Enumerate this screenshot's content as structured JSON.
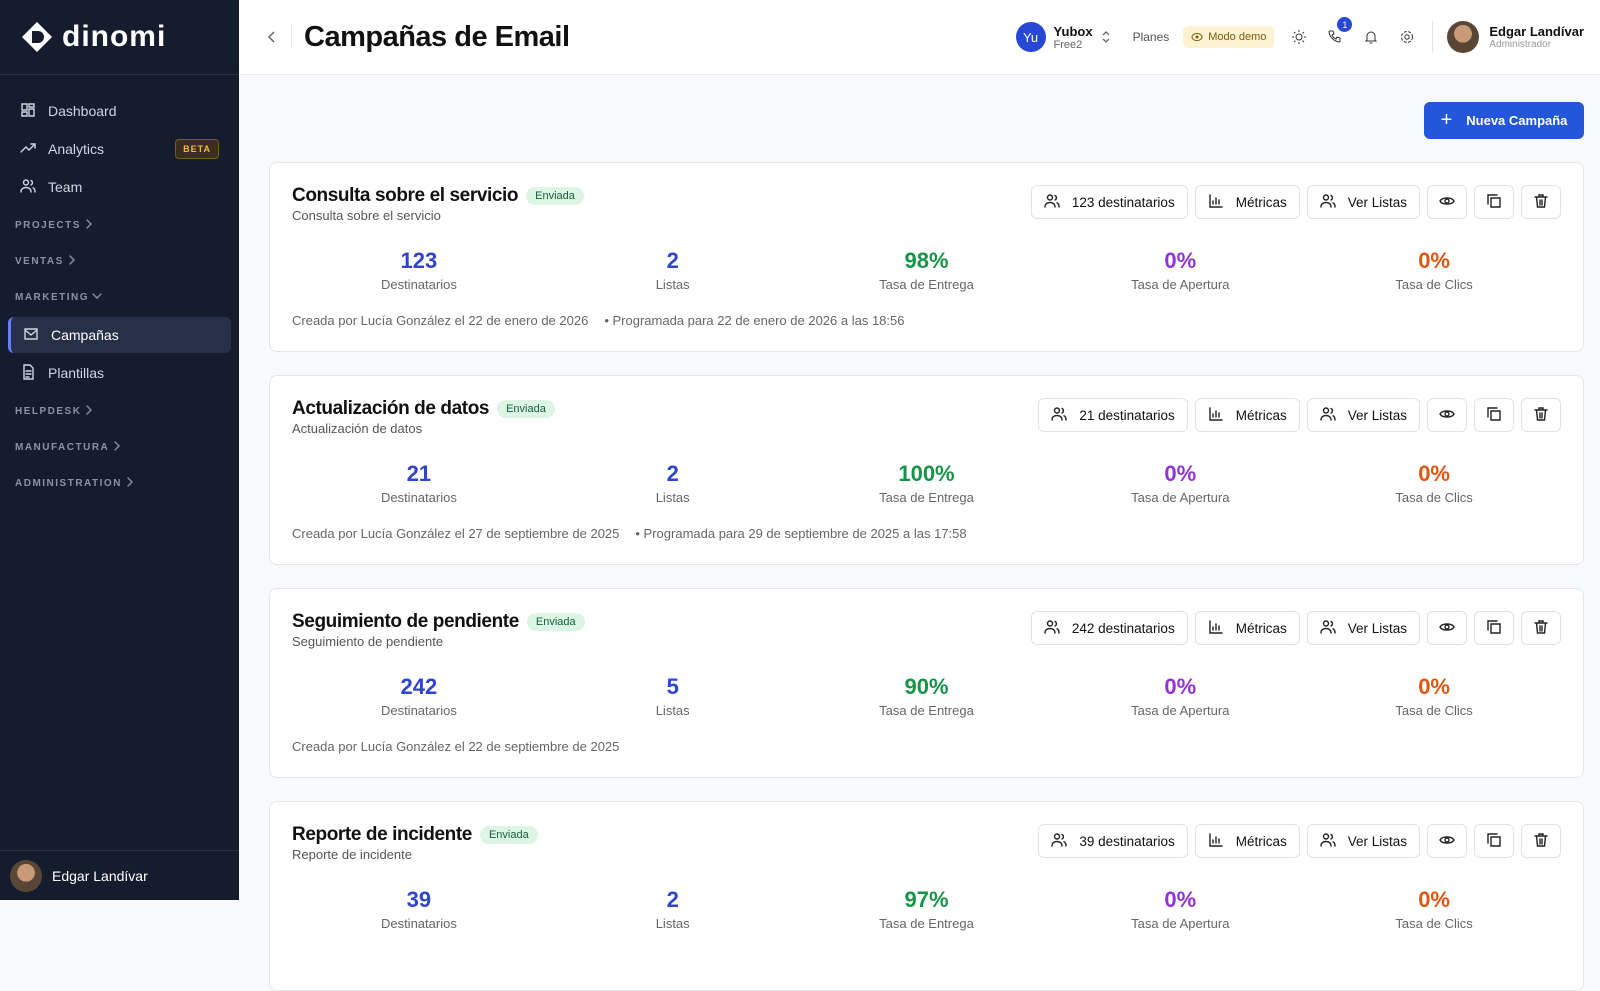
{
  "sidebar": {
    "logo": "dinomi",
    "nav": [
      {
        "label": "Dashboard"
      },
      {
        "label": "Analytics",
        "badge": "BETA"
      },
      {
        "label": "Team"
      }
    ],
    "sections": [
      {
        "label": "PROJECTS",
        "items": []
      },
      {
        "label": "VENTAS",
        "items": []
      },
      {
        "label": "MARKETING",
        "items": [
          "Campañas",
          "Plantillas"
        ]
      },
      {
        "label": "HELPDESK",
        "items": []
      },
      {
        "label": "MANUFACTURA",
        "items": []
      },
      {
        "label": "ADMINISTRATION",
        "items": []
      }
    ],
    "user": "Edgar Landívar"
  },
  "header": {
    "title": "Campañas de Email",
    "org": {
      "initials": "Yu",
      "name": "Yubox",
      "plan": "Free2"
    },
    "plans": "Planes",
    "demo": "Modo demo",
    "notifications": "1",
    "user": {
      "name": "Edgar Landívar",
      "role": "Administrador"
    }
  },
  "new_button": "Nueva Campaña",
  "buttons": {
    "metrics": "Métricas",
    "lists": "Ver Listas"
  },
  "stat_labels": [
    "Destinatarios",
    "Listas",
    "Tasa de Entrega",
    "Tasa de Apertura",
    "Tasa de Clics"
  ],
  "campaigns": [
    {
      "title": "Consulta sobre el servicio",
      "status": "Enviada",
      "subtitle": "Consulta sobre el servicio",
      "recipients_button": "123 destinatarios",
      "stats": [
        "123",
        "2",
        "98%",
        "0%",
        "0%"
      ],
      "created": "Creada por Lucía González el 22 de enero de 2026",
      "scheduled": "• Programada para 22 de enero de 2026 a las 18:56"
    },
    {
      "title": "Actualización de datos",
      "status": "Enviada",
      "subtitle": "Actualización de datos",
      "recipients_button": "21 destinatarios",
      "stats": [
        "21",
        "2",
        "100%",
        "0%",
        "0%"
      ],
      "created": "Creada por Lucía González el 27 de septiembre de 2025",
      "scheduled": "• Programada para 29 de septiembre de 2025 a las 17:58"
    },
    {
      "title": "Seguimiento de pendiente",
      "status": "Enviada",
      "subtitle": "Seguimiento de pendiente",
      "recipients_button": "242 destinatarios",
      "stats": [
        "242",
        "5",
        "90%",
        "0%",
        "0%"
      ],
      "created": "Creada por Lucía González el 22 de septiembre de 2025",
      "scheduled": null
    },
    {
      "title": "Reporte de incidente",
      "status": "Enviada",
      "subtitle": "Reporte de incidente",
      "recipients_button": "39 destinatarios",
      "stats": [
        "39",
        "2",
        "97%",
        "0%",
        "0%"
      ],
      "created": null,
      "scheduled": null
    }
  ]
}
